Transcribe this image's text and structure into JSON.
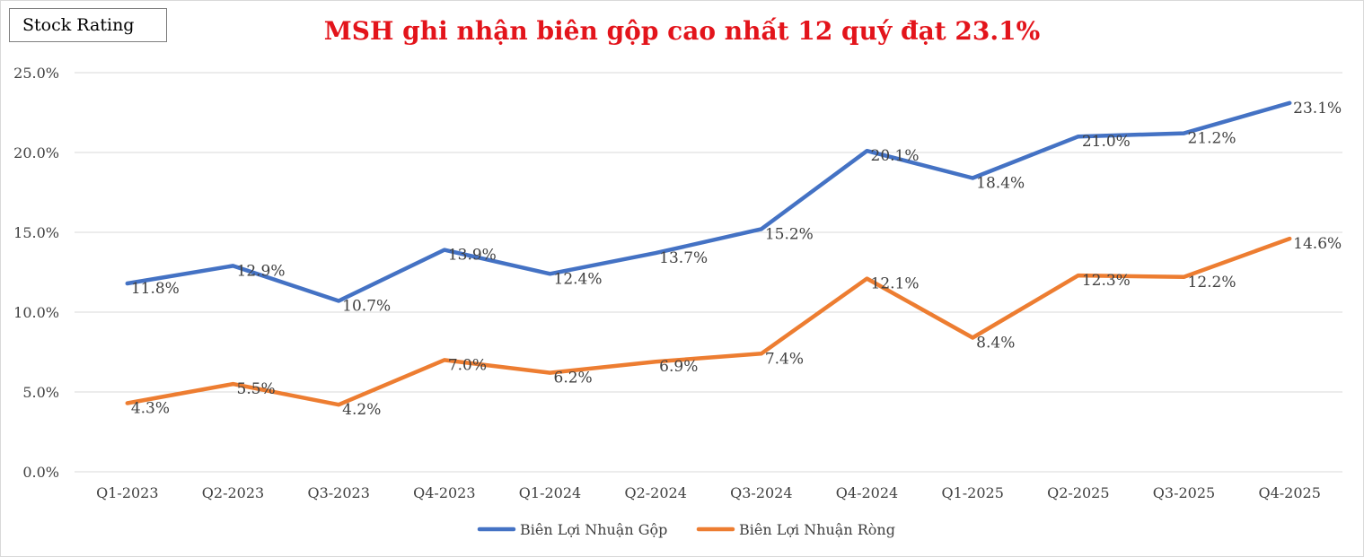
{
  "badge": "Stock Rating",
  "chart_data": {
    "type": "line",
    "title": "MSH ghi nhận biên gộp cao nhất 12 quý đạt 23.1%",
    "xlabel": "",
    "ylabel": "",
    "categories": [
      "Q1-2023",
      "Q2-2023",
      "Q3-2023",
      "Q4-2023",
      "Q1-2024",
      "Q2-2024",
      "Q3-2024",
      "Q4-2024",
      "Q1-2025",
      "Q2-2025",
      "Q3-2025",
      "Q4-2025"
    ],
    "ylim": [
      0,
      25
    ],
    "yticks": [
      0,
      5,
      10,
      15,
      20,
      25
    ],
    "ytick_labels": [
      "0.0%",
      "5.0%",
      "10.0%",
      "15.0%",
      "20.0%",
      "25.0%"
    ],
    "grid": true,
    "legend_position": "bottom",
    "series": [
      {
        "name": "Biên Lợi Nhuận Gộp",
        "color": "#4472c4",
        "values": [
          11.8,
          12.9,
          10.7,
          13.9,
          12.4,
          13.7,
          15.2,
          20.1,
          18.4,
          21.0,
          21.2,
          23.1
        ],
        "labels": [
          "11.8%",
          "12.9%",
          "10.7%",
          "13.9%",
          "12.4%",
          "13.7%",
          "15.2%",
          "20.1%",
          "18.4%",
          "21.0%",
          "21.2%",
          "23.1%"
        ]
      },
      {
        "name": "Biên Lợi Nhuận Ròng",
        "color": "#ed7d31",
        "values": [
          4.3,
          5.5,
          4.2,
          7.0,
          6.2,
          6.9,
          7.4,
          12.1,
          8.4,
          12.3,
          12.2,
          14.6
        ],
        "labels": [
          "4.3%",
          "5.5%",
          "4.2%",
          "7.0%",
          "6.2%",
          "6.9%",
          "7.4%",
          "12.1%",
          "8.4%",
          "12.3%",
          "12.2%",
          "14.6%"
        ]
      }
    ]
  }
}
